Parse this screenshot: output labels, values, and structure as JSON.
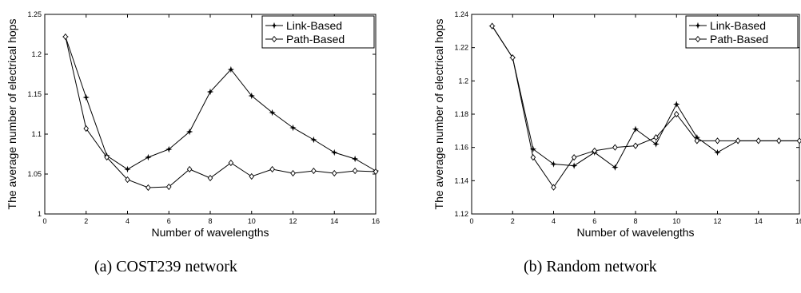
{
  "captions": {
    "a": "(a) COST239 network",
    "b": "(b) Random network"
  },
  "chart_data": [
    {
      "type": "line",
      "xlabel": "Number of wavelengths",
      "ylabel": "The average number of electrical hops",
      "xlim": [
        0,
        16
      ],
      "ylim": [
        1,
        1.25
      ],
      "xticks": [
        0,
        2,
        4,
        6,
        8,
        10,
        12,
        14,
        16
      ],
      "yticks": [
        1,
        1.05,
        1.1,
        1.15,
        1.2,
        1.25
      ],
      "xtick_labels": [
        "0",
        "2",
        "4",
        "6",
        "8",
        "10",
        "12",
        "14",
        "16"
      ],
      "ytick_labels": [
        "1",
        "1.05",
        "1.1",
        "1.15",
        "1.2",
        "1.25"
      ],
      "legend": "top-right",
      "grid": false,
      "x": [
        1,
        2,
        3,
        4,
        5,
        6,
        7,
        8,
        9,
        10,
        11,
        12,
        13,
        14,
        15,
        16
      ],
      "series": [
        {
          "name": "Link-Based",
          "marker": "star",
          "values": [
            1.222,
            1.146,
            1.073,
            1.056,
            1.071,
            1.081,
            1.103,
            1.153,
            1.181,
            1.148,
            1.127,
            1.108,
            1.093,
            1.077,
            1.069,
            1.054
          ]
        },
        {
          "name": "Path-Based",
          "marker": "diamond",
          "values": [
            1.222,
            1.107,
            1.071,
            1.043,
            1.033,
            1.034,
            1.056,
            1.045,
            1.064,
            1.047,
            1.056,
            1.051,
            1.054,
            1.051,
            1.054,
            1.053
          ]
        }
      ]
    },
    {
      "type": "line",
      "xlabel": "Number of wavelengths",
      "ylabel": "The average number of electrical hops",
      "xlim": [
        0,
        16
      ],
      "ylim": [
        1.12,
        1.24
      ],
      "xticks": [
        0,
        2,
        4,
        6,
        8,
        10,
        12,
        14,
        16
      ],
      "yticks": [
        1.12,
        1.14,
        1.16,
        1.18,
        1.2,
        1.22,
        1.24
      ],
      "xtick_labels": [
        "0",
        "2",
        "4",
        "6",
        "8",
        "10",
        "12",
        "14",
        "16"
      ],
      "ytick_labels": [
        "1.12",
        "1.14",
        "1.16",
        "1.18",
        "1.2",
        "1.22",
        "1.24"
      ],
      "legend": "top-right",
      "grid": false,
      "x": [
        1,
        2,
        3,
        4,
        5,
        6,
        7,
        8,
        9,
        10,
        11,
        12,
        13,
        14,
        15,
        16
      ],
      "series": [
        {
          "name": "Link-Based",
          "marker": "star",
          "values": [
            1.233,
            1.214,
            1.159,
            1.15,
            1.149,
            1.157,
            1.148,
            1.171,
            1.162,
            1.186,
            1.166,
            1.157,
            1.164,
            1.164,
            1.164,
            1.164
          ]
        },
        {
          "name": "Path-Based",
          "marker": "diamond",
          "values": [
            1.233,
            1.214,
            1.154,
            1.136,
            1.154,
            1.158,
            1.16,
            1.161,
            1.166,
            1.18,
            1.164,
            1.164,
            1.164,
            1.164,
            1.164,
            1.164
          ]
        }
      ]
    }
  ]
}
